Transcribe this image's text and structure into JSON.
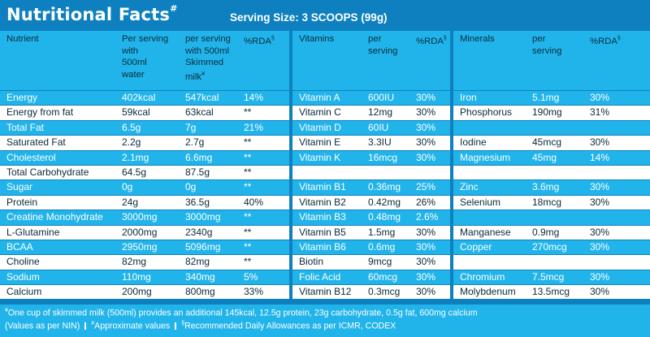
{
  "header": {
    "title": "Nutritional Facts",
    "title_mark": "#",
    "serving": "Serving Size: 3 SCOOPS (99g)"
  },
  "nutrients": {
    "headers": {
      "name": "Nutrient",
      "per_serving_water": [
        "Per serving",
        "with",
        "500ml",
        "water"
      ],
      "per_serving_milk": [
        "per serving",
        "with 500ml",
        "Skimmed",
        "milk"
      ],
      "milk_mark": "¥",
      "rda": "%RDA",
      "rda_mark": "§"
    },
    "rows": [
      {
        "name": "Energy",
        "water": "402kcal",
        "milk": "547kcal",
        "rda": "14%"
      },
      {
        "name": "Energy from fat",
        "water": "59kcal",
        "milk": "63kcal",
        "rda": "**"
      },
      {
        "name": "Total Fat",
        "water": "6.5g",
        "milk": "7g",
        "rda": "21%"
      },
      {
        "name": "Saturated Fat",
        "water": "2.2g",
        "milk": "2.7g",
        "rda": "**"
      },
      {
        "name": "Cholesterol",
        "water": "2.1mg",
        "milk": "6.6mg",
        "rda": "**"
      },
      {
        "name": "Total Carbohydrate",
        "water": "64.5g",
        "milk": "87.5g",
        "rda": "**"
      },
      {
        "name": "Sugar",
        "water": "0g",
        "milk": "0g",
        "rda": "**"
      },
      {
        "name": "Protein",
        "water": "24g",
        "milk": "36.5g",
        "rda": "40%"
      },
      {
        "name": "Creatine Monohydrate",
        "water": "3000mg",
        "milk": "3000mg",
        "rda": "**"
      },
      {
        "name": "L-Glutamine",
        "water": "2000mg",
        "milk": "2340g",
        "rda": "**"
      },
      {
        "name": "BCAA",
        "water": "2950mg",
        "milk": "5096mg",
        "rda": "**"
      },
      {
        "name": "Choline",
        "water": "82mg",
        "milk": "82mg",
        "rda": "**"
      },
      {
        "name": "Sodium",
        "water": "110mg",
        "milk": "340mg",
        "rda": "5%"
      },
      {
        "name": "Calcium",
        "water": "200mg",
        "milk": "800mg",
        "rda": "33%"
      }
    ]
  },
  "vitamins": {
    "headers": {
      "name": "Vitamins",
      "per_serving": [
        "per",
        "serving"
      ],
      "rda": "%RDA",
      "rda_mark": "§"
    },
    "rows": [
      {
        "name": "Vitamin A",
        "value": "600IU",
        "rda": "30%"
      },
      {
        "name": "Vitamin C",
        "value": "12mg",
        "rda": "30%"
      },
      {
        "name": "Vitamin D",
        "value": "60IU",
        "rda": "30%"
      },
      {
        "name": "Vitamin E",
        "value": "3.3IU",
        "rda": "30%"
      },
      {
        "name": "Vitamin K",
        "value": "16mcg",
        "rda": "30%"
      },
      {
        "name": "",
        "value": "",
        "rda": ""
      },
      {
        "name": "Vitamin B1",
        "value": "0.36mg",
        "rda": "25%"
      },
      {
        "name": "Vitamin B2",
        "value": "0.42mg",
        "rda": "26%"
      },
      {
        "name": "Vitamin B3",
        "value": "0.48mg",
        "rda": "2.6%"
      },
      {
        "name": "Vitamin B5",
        "value": "1.5mg",
        "rda": "30%"
      },
      {
        "name": "Vitamin B6",
        "value": "0.6mg",
        "rda": "30%"
      },
      {
        "name": "Biotin",
        "value": "9mcg",
        "rda": "30%"
      },
      {
        "name": "Folic Acid",
        "value": "60mcg",
        "rda": "30%"
      },
      {
        "name": "Vitamin B12",
        "value": "0.3mcg",
        "rda": "30%"
      }
    ]
  },
  "minerals": {
    "headers": {
      "name": "Minerals",
      "per_serving": [
        "per",
        "serving"
      ],
      "rda": "%RDA",
      "rda_mark": "§"
    },
    "rows": [
      {
        "name": "Iron",
        "value": "5.1mg",
        "rda": "30%"
      },
      {
        "name": "Phosphorus",
        "value": "190mg",
        "rda": "31%"
      },
      {
        "name": "",
        "value": "",
        "rda": ""
      },
      {
        "name": "Iodine",
        "value": "45mcg",
        "rda": "30%"
      },
      {
        "name": "Magnesium",
        "value": "45mg",
        "rda": "14%"
      },
      {
        "name": "",
        "value": "",
        "rda": ""
      },
      {
        "name": "Zinc",
        "value": "3.6mg",
        "rda": "30%"
      },
      {
        "name": "Selenium",
        "value": "18mcg",
        "rda": "30%"
      },
      {
        "name": "",
        "value": "",
        "rda": ""
      },
      {
        "name": "Manganese",
        "value": "0.9mg",
        "rda": "30%"
      },
      {
        "name": "Copper",
        "value": "270mcg",
        "rda": "30%"
      },
      {
        "name": "",
        "value": "",
        "rda": ""
      },
      {
        "name": "Chromium",
        "value": "7.5mcg",
        "rda": "30%"
      },
      {
        "name": "Molybdenum",
        "value": "13.5mcg",
        "rda": "30%"
      }
    ]
  },
  "footer": {
    "line1_mark": "¥",
    "line1": "One cup of skimmed milk (500ml) provides an additional 145kcal, 12.5g protein, 23g carbohydrate, 0.5g fat, 600mg calcium",
    "line2_a": "(Values as per NIN)",
    "line2_b_mark": "#",
    "line2_b": "Approximate values",
    "line2_c_mark": "§",
    "line2_c": "Recommended Daily Allowances as per ICMR, CODEX"
  },
  "colors": {
    "dark_blue": "#0e80bf",
    "light_blue": "#21b4ea",
    "white": "#ffffff"
  }
}
